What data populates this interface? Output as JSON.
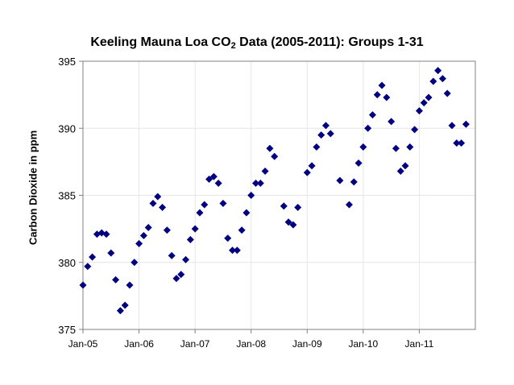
{
  "chart_data": {
    "type": "scatter",
    "title": {
      "prefix": "Keeling Mauna Loa CO",
      "subscript": "2",
      "suffix": " Data (2005-2011):  Groups 1-31"
    },
    "xlabel": "",
    "ylabel": "Carbon Dioxide in ppm",
    "ylim": [
      375,
      395
    ],
    "yticks": [
      "375",
      "380",
      "385",
      "390",
      "395"
    ],
    "xlim": [
      "2005-01",
      "2011-12"
    ],
    "xticks": [
      "Jan-05",
      "Jan-06",
      "Jan-07",
      "Jan-08",
      "Jan-09",
      "Jan-10",
      "Jan-11"
    ],
    "grid": true,
    "marker": "diamond",
    "marker_color": "#000080",
    "x": [
      "2005-01",
      "2005-02",
      "2005-03",
      "2005-04",
      "2005-05",
      "2005-06",
      "2005-07",
      "2005-08",
      "2005-09",
      "2005-10",
      "2005-11",
      "2005-12",
      "2006-01",
      "2006-02",
      "2006-03",
      "2006-04",
      "2006-05",
      "2006-06",
      "2006-07",
      "2006-08",
      "2006-09",
      "2006-10",
      "2006-11",
      "2006-12",
      "2007-01",
      "2007-02",
      "2007-03",
      "2007-04",
      "2007-05",
      "2007-06",
      "2007-07",
      "2007-08",
      "2007-09",
      "2007-10",
      "2007-11",
      "2007-12",
      "2008-01",
      "2008-02",
      "2008-03",
      "2008-04",
      "2008-05",
      "2008-06",
      "2008-07",
      "2008-08",
      "2008-09",
      "2008-10",
      "2008-11",
      "2008-12",
      "2009-01",
      "2009-02",
      "2009-03",
      "2009-04",
      "2009-05",
      "2009-06",
      "2009-07",
      "2009-08",
      "2009-09",
      "2009-10",
      "2009-11",
      "2009-12",
      "2010-01",
      "2010-02",
      "2010-03",
      "2010-04",
      "2010-05",
      "2010-06",
      "2010-07",
      "2010-08",
      "2010-09",
      "2010-10",
      "2010-11",
      "2010-12",
      "2011-01",
      "2011-02",
      "2011-03",
      "2011-04",
      "2011-05",
      "2011-06",
      "2011-07",
      "2011-08",
      "2011-09",
      "2011-10",
      "2011-11",
      "2011-12"
    ],
    "y": [
      378.3,
      379.7,
      380.4,
      382.1,
      382.2,
      382.1,
      380.7,
      378.7,
      376.4,
      376.8,
      378.3,
      380.0,
      381.4,
      382.0,
      382.6,
      384.4,
      384.9,
      384.1,
      382.4,
      380.5,
      378.8,
      379.1,
      380.2,
      381.7,
      382.5,
      383.7,
      384.3,
      386.2,
      386.4,
      385.9,
      384.4,
      381.8,
      380.9,
      380.9,
      382.4,
      383.7,
      385.0,
      385.9,
      385.9,
      386.8,
      388.5,
      387.9,
      null,
      384.2,
      383.0,
      382.8,
      384.1,
      null,
      386.7,
      387.2,
      388.6,
      389.5,
      390.2,
      389.6,
      null,
      386.1,
      null,
      384.3,
      386.0,
      387.4,
      388.6,
      390.0,
      391.0,
      392.5,
      393.2,
      392.3,
      390.5,
      388.5,
      386.8,
      387.2,
      388.6,
      389.9,
      391.3,
      391.9,
      392.3,
      393.5,
      394.3,
      393.7,
      392.6,
      390.2,
      388.9,
      388.9,
      390.3,
      null
    ]
  }
}
